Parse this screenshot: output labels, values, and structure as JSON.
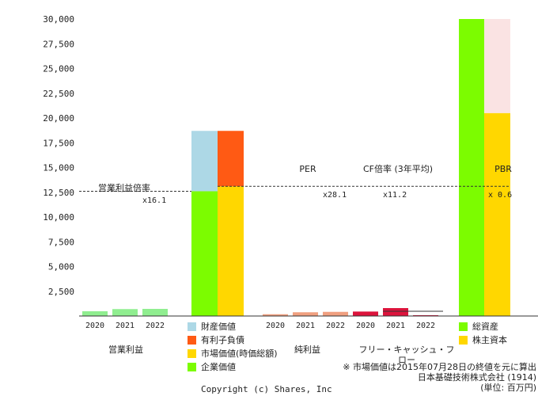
{
  "chart_data": {
    "type": "bar",
    "y_ticks": [
      "2,500",
      "5,000",
      "7,500",
      "10,000",
      "12,500",
      "15,000",
      "17,500",
      "20,000",
      "22,500",
      "25,000",
      "27,500",
      "30,000"
    ],
    "ylim": [
      0,
      30000
    ],
    "grid": false,
    "op_profit": {
      "group_label": "営業利益",
      "years": [
        "2020",
        "2021",
        "2022"
      ],
      "values": [
        480,
        700,
        720
      ],
      "color": "#90ee90"
    },
    "ev_breakdown": {
      "stack_left": [
        {
          "name": "企業価値",
          "value": 12600,
          "color": "#7cfc00"
        },
        {
          "name": "財産価値",
          "value": 6100,
          "color": "#add8e6"
        }
      ],
      "stack_right": [
        {
          "name": "市場価値(時価総額)",
          "value": 13100,
          "color": "#ffd700"
        },
        {
          "name": "有利子負債",
          "value": 5600,
          "color": "#ff5a14"
        }
      ]
    },
    "net_income": {
      "group_label": "純利益",
      "years": [
        "2020",
        "2021",
        "2022"
      ],
      "values": [
        180,
        380,
        420
      ],
      "color": "#f0a080"
    },
    "fcf": {
      "group_label": "フリー・キャッシュ・フロー",
      "years": [
        "2020",
        "2021",
        "2022"
      ],
      "values": [
        450,
        800,
        80
      ],
      "color": "#dc143c"
    },
    "balance": {
      "stack_left": [
        {
          "name": "総資産",
          "value": 30000,
          "color": "#7cfc00"
        }
      ],
      "stack_right": [
        {
          "name": "株主資本",
          "value": 20500,
          "color": "#ffd700"
        },
        {
          "name": "",
          "value": 9500,
          "color": "#fae3e3"
        }
      ]
    },
    "ratios": {
      "reference_value": 12600,
      "op_multiple": {
        "label": "営業利益倍率",
        "value": "x16.1"
      },
      "per": {
        "label": "PER",
        "value": "x28.1"
      },
      "cf_multiple": {
        "label": "CF倍率 (3年平均)",
        "value": "x11.2"
      },
      "pbr": {
        "label": "PBR",
        "value": "x 0.6"
      }
    }
  },
  "legend_ev": [
    {
      "name": "財産価値",
      "color": "#add8e6"
    },
    {
      "name": "有利子負債",
      "color": "#ff5a14"
    },
    {
      "name": "市場価値(時価総額)",
      "color": "#ffd700"
    },
    {
      "name": "企業価値",
      "color": "#7cfc00"
    }
  ],
  "legend_balance": [
    {
      "name": "総資産",
      "color": "#7cfc00"
    },
    {
      "name": "株主資本",
      "color": "#ffd700"
    }
  ],
  "note": {
    "line1": "※ 市場価値は2015年07月28日の終値を元に算出",
    "line2": "日本基礎技術株式会社 (1914)",
    "line3": "(単位: 百万円)"
  },
  "copyright": "Copyright (c) Shares, Inc"
}
